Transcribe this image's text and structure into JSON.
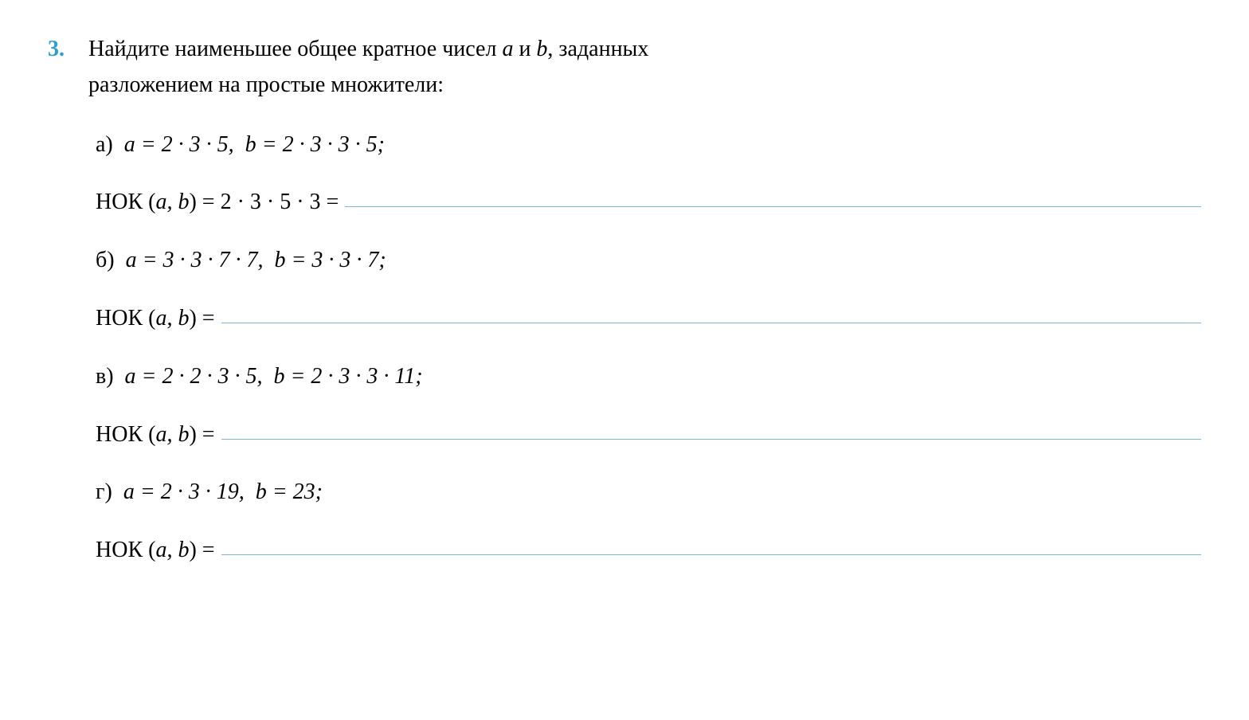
{
  "problem": {
    "number": "3.",
    "text_line1": "Найдите наименьшее общее кратное чисел ",
    "text_var_a": "a",
    "text_and": " и ",
    "text_var_b": "b",
    "text_line1_end": ", заданных",
    "text_line2": "разложением на простые множители:",
    "items": [
      {
        "label": "а)",
        "a_expr": "a = 2 · 3 · 5,",
        "b_expr": "b = 2 · 3 · 3 · 5;",
        "nok_prefix": "НОК (",
        "nok_vars": "a, b",
        "nok_close": ") = 2 · 3 · 5 · 3 ="
      },
      {
        "label": "б)",
        "a_expr": "a = 3 · 3 · 7 · 7,",
        "b_expr": "b = 3 · 3 · 7;",
        "nok_prefix": "НОК (",
        "nok_vars": "a, b",
        "nok_close": ") ="
      },
      {
        "label": "в)",
        "a_expr": "a = 2 · 2 · 3 · 5,",
        "b_expr": "b = 2 · 3 · 3 · 11;",
        "nok_prefix": "НОК (",
        "nok_vars": "a, b",
        "nok_close": ") ="
      },
      {
        "label": "г)",
        "a_expr": "a = 2 · 3 · 19,",
        "b_expr": "b = 23;",
        "nok_prefix": "НОК (",
        "nok_vars": "a, b",
        "nok_close": ") ="
      }
    ]
  },
  "colors": {
    "problem_number": "#2a9fd6",
    "underline": "#7ab8d9",
    "text": "#000000",
    "background": "#ffffff"
  },
  "typography": {
    "base_font_size": 28,
    "font_family": "Times New Roman"
  }
}
